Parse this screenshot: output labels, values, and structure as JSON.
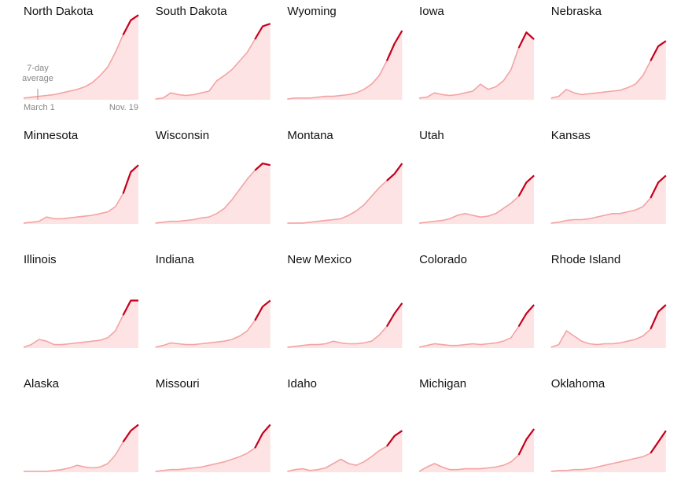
{
  "chart_data": [
    {
      "type": "line",
      "title": "North Dakota",
      "ylim": [
        0,
        100
      ],
      "annotation": [
        "7-day",
        "average"
      ],
      "xlabels": [
        "March 1",
        "Nov. 19"
      ],
      "series": [
        {
          "color": "#f4a3a3",
          "values": [
            2,
            3,
            4,
            5,
            6,
            8,
            10,
            12,
            15,
            20,
            28,
            38,
            55,
            75,
            92,
            98
          ]
        },
        {
          "color": "#c4001d",
          "values": [
            null,
            null,
            null,
            null,
            null,
            null,
            null,
            null,
            null,
            null,
            null,
            null,
            null,
            75,
            92,
            98
          ]
        }
      ]
    },
    {
      "type": "line",
      "title": "South Dakota",
      "ylim": [
        0,
        100
      ],
      "series": [
        {
          "color": "#f4a3a3",
          "values": [
            1,
            2,
            8,
            6,
            5,
            6,
            8,
            10,
            22,
            28,
            35,
            45,
            55,
            70,
            85,
            88
          ]
        },
        {
          "color": "#c4001d",
          "values": [
            null,
            null,
            null,
            null,
            null,
            null,
            null,
            null,
            null,
            null,
            null,
            null,
            null,
            70,
            85,
            88
          ]
        }
      ]
    },
    {
      "type": "line",
      "title": "Wyoming",
      "ylim": [
        0,
        100
      ],
      "series": [
        {
          "color": "#f4a3a3",
          "values": [
            1,
            2,
            2,
            2,
            3,
            4,
            4,
            5,
            6,
            8,
            12,
            18,
            28,
            45,
            65,
            80
          ]
        },
        {
          "color": "#c4001d",
          "values": [
            null,
            null,
            null,
            null,
            null,
            null,
            null,
            null,
            null,
            null,
            null,
            null,
            null,
            45,
            65,
            80
          ]
        }
      ]
    },
    {
      "type": "line",
      "title": "Iowa",
      "ylim": [
        0,
        100
      ],
      "series": [
        {
          "color": "#f4a3a3",
          "values": [
            2,
            3,
            8,
            6,
            5,
            6,
            8,
            10,
            18,
            12,
            15,
            22,
            35,
            60,
            78,
            70
          ]
        },
        {
          "color": "#c4001d",
          "values": [
            null,
            null,
            null,
            null,
            null,
            null,
            null,
            null,
            null,
            null,
            null,
            null,
            null,
            60,
            78,
            70
          ]
        }
      ]
    },
    {
      "type": "line",
      "title": "Nebraska",
      "ylim": [
        0,
        100
      ],
      "series": [
        {
          "color": "#f4a3a3",
          "values": [
            2,
            4,
            12,
            8,
            6,
            7,
            8,
            9,
            10,
            11,
            14,
            18,
            28,
            45,
            62,
            68
          ]
        },
        {
          "color": "#c4001d",
          "values": [
            null,
            null,
            null,
            null,
            null,
            null,
            null,
            null,
            null,
            null,
            null,
            null,
            null,
            45,
            62,
            68
          ]
        }
      ]
    },
    {
      "type": "line",
      "title": "Minnesota",
      "ylim": [
        0,
        100
      ],
      "series": [
        {
          "color": "#f4a3a3",
          "values": [
            1,
            2,
            3,
            8,
            6,
            6,
            7,
            8,
            9,
            10,
            12,
            14,
            20,
            35,
            60,
            68
          ]
        },
        {
          "color": "#c4001d",
          "values": [
            null,
            null,
            null,
            null,
            null,
            null,
            null,
            null,
            null,
            null,
            null,
            null,
            null,
            35,
            60,
            68
          ]
        }
      ]
    },
    {
      "type": "line",
      "title": "Wisconsin",
      "ylim": [
        0,
        100
      ],
      "series": [
        {
          "color": "#f4a3a3",
          "values": [
            1,
            2,
            3,
            3,
            4,
            5,
            7,
            8,
            12,
            18,
            28,
            40,
            52,
            62,
            70,
            68
          ]
        },
        {
          "color": "#c4001d",
          "values": [
            null,
            null,
            null,
            null,
            null,
            null,
            null,
            null,
            null,
            null,
            null,
            null,
            null,
            62,
            70,
            68
          ]
        }
      ]
    },
    {
      "type": "line",
      "title": "Montana",
      "ylim": [
        0,
        100
      ],
      "series": [
        {
          "color": "#f4a3a3",
          "values": [
            1,
            1,
            1,
            2,
            3,
            4,
            5,
            6,
            10,
            15,
            22,
            32,
            42,
            50,
            58,
            70
          ]
        },
        {
          "color": "#c4001d",
          "values": [
            null,
            null,
            null,
            null,
            null,
            null,
            null,
            null,
            null,
            null,
            null,
            null,
            null,
            50,
            58,
            70
          ]
        }
      ]
    },
    {
      "type": "line",
      "title": "Utah",
      "ylim": [
        0,
        100
      ],
      "series": [
        {
          "color": "#f4a3a3",
          "values": [
            1,
            2,
            3,
            4,
            6,
            10,
            12,
            10,
            8,
            9,
            12,
            18,
            24,
            32,
            48,
            56
          ]
        },
        {
          "color": "#c4001d",
          "values": [
            null,
            null,
            null,
            null,
            null,
            null,
            null,
            null,
            null,
            null,
            null,
            null,
            null,
            32,
            48,
            56
          ]
        }
      ]
    },
    {
      "type": "line",
      "title": "Kansas",
      "ylim": [
        0,
        100
      ],
      "series": [
        {
          "color": "#f4a3a3",
          "values": [
            1,
            2,
            4,
            5,
            5,
            6,
            8,
            10,
            12,
            12,
            14,
            16,
            20,
            30,
            48,
            56
          ]
        },
        {
          "color": "#c4001d",
          "values": [
            null,
            null,
            null,
            null,
            null,
            null,
            null,
            null,
            null,
            null,
            null,
            null,
            null,
            30,
            48,
            56
          ]
        }
      ]
    },
    {
      "type": "line",
      "title": "Illinois",
      "ylim": [
        0,
        100
      ],
      "series": [
        {
          "color": "#f4a3a3",
          "values": [
            1,
            4,
            10,
            8,
            4,
            4,
            5,
            6,
            7,
            8,
            9,
            12,
            20,
            38,
            55,
            55
          ]
        },
        {
          "color": "#c4001d",
          "values": [
            null,
            null,
            null,
            null,
            null,
            null,
            null,
            null,
            null,
            null,
            null,
            null,
            null,
            38,
            55,
            55
          ]
        }
      ]
    },
    {
      "type": "line",
      "title": "Indiana",
      "ylim": [
        0,
        100
      ],
      "series": [
        {
          "color": "#f4a3a3",
          "values": [
            1,
            3,
            6,
            5,
            4,
            4,
            5,
            6,
            7,
            8,
            10,
            14,
            20,
            32,
            48,
            55
          ]
        },
        {
          "color": "#c4001d",
          "values": [
            null,
            null,
            null,
            null,
            null,
            null,
            null,
            null,
            null,
            null,
            null,
            null,
            null,
            32,
            48,
            55
          ]
        }
      ]
    },
    {
      "type": "line",
      "title": "New Mexico",
      "ylim": [
        0,
        100
      ],
      "series": [
        {
          "color": "#f4a3a3",
          "values": [
            1,
            2,
            3,
            4,
            4,
            5,
            8,
            6,
            5,
            5,
            6,
            8,
            15,
            25,
            40,
            52
          ]
        },
        {
          "color": "#c4001d",
          "values": [
            null,
            null,
            null,
            null,
            null,
            null,
            null,
            null,
            null,
            null,
            null,
            null,
            null,
            25,
            40,
            52
          ]
        }
      ]
    },
    {
      "type": "line",
      "title": "Colorado",
      "ylim": [
        0,
        100
      ],
      "series": [
        {
          "color": "#f4a3a3",
          "values": [
            1,
            3,
            5,
            4,
            3,
            3,
            4,
            5,
            4,
            5,
            6,
            8,
            12,
            25,
            40,
            50
          ]
        },
        {
          "color": "#c4001d",
          "values": [
            null,
            null,
            null,
            null,
            null,
            null,
            null,
            null,
            null,
            null,
            null,
            null,
            null,
            25,
            40,
            50
          ]
        }
      ]
    },
    {
      "type": "line",
      "title": "Rhode Island",
      "ylim": [
        0,
        100
      ],
      "series": [
        {
          "color": "#f4a3a3",
          "values": [
            1,
            4,
            20,
            14,
            8,
            5,
            4,
            5,
            5,
            6,
            8,
            10,
            14,
            22,
            42,
            50
          ]
        },
        {
          "color": "#c4001d",
          "values": [
            null,
            null,
            null,
            null,
            null,
            null,
            null,
            null,
            null,
            null,
            null,
            null,
            null,
            22,
            42,
            50
          ]
        }
      ]
    },
    {
      "type": "line",
      "title": "Alaska",
      "ylim": [
        0,
        100
      ],
      "series": [
        {
          "color": "#f4a3a3",
          "values": [
            1,
            1,
            1,
            1,
            2,
            3,
            5,
            8,
            6,
            5,
            6,
            10,
            20,
            35,
            48,
            55
          ]
        },
        {
          "color": "#c4001d",
          "values": [
            null,
            null,
            null,
            null,
            null,
            null,
            null,
            null,
            null,
            null,
            null,
            null,
            null,
            35,
            48,
            55
          ]
        }
      ]
    },
    {
      "type": "line",
      "title": "Missouri",
      "ylim": [
        0,
        100
      ],
      "series": [
        {
          "color": "#f4a3a3",
          "values": [
            1,
            2,
            3,
            3,
            4,
            5,
            6,
            8,
            10,
            12,
            15,
            18,
            22,
            28,
            45,
            55
          ]
        },
        {
          "color": "#c4001d",
          "values": [
            null,
            null,
            null,
            null,
            null,
            null,
            null,
            null,
            null,
            null,
            null,
            null,
            null,
            28,
            45,
            55
          ]
        }
      ]
    },
    {
      "type": "line",
      "title": "Idaho",
      "ylim": [
        0,
        100
      ],
      "series": [
        {
          "color": "#f4a3a3",
          "values": [
            1,
            3,
            4,
            2,
            3,
            5,
            10,
            15,
            10,
            8,
            12,
            18,
            25,
            30,
            42,
            48
          ]
        },
        {
          "color": "#c4001d",
          "values": [
            null,
            null,
            null,
            null,
            null,
            null,
            null,
            null,
            null,
            null,
            null,
            null,
            null,
            30,
            42,
            48
          ]
        }
      ]
    },
    {
      "type": "line",
      "title": "Michigan",
      "ylim": [
        0,
        100
      ],
      "series": [
        {
          "color": "#f4a3a3",
          "values": [
            1,
            6,
            10,
            6,
            3,
            3,
            4,
            4,
            4,
            5,
            6,
            8,
            12,
            20,
            38,
            50
          ]
        },
        {
          "color": "#c4001d",
          "values": [
            null,
            null,
            null,
            null,
            null,
            null,
            null,
            null,
            null,
            null,
            null,
            null,
            null,
            20,
            38,
            50
          ]
        }
      ]
    },
    {
      "type": "line",
      "title": "Oklahoma",
      "ylim": [
        0,
        100
      ],
      "series": [
        {
          "color": "#f4a3a3",
          "values": [
            1,
            2,
            2,
            3,
            3,
            4,
            6,
            8,
            10,
            12,
            14,
            16,
            18,
            22,
            35,
            48
          ]
        },
        {
          "color": "#c4001d",
          "values": [
            null,
            null,
            null,
            null,
            null,
            null,
            null,
            null,
            null,
            null,
            null,
            null,
            null,
            22,
            35,
            48
          ]
        }
      ]
    }
  ]
}
